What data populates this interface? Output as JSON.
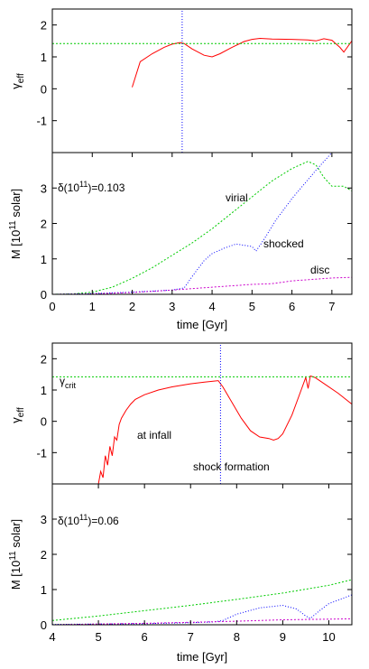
{
  "chart_data": [
    {
      "type": "line",
      "ylabel_main": "γ",
      "ylabel_sub": "eff",
      "ylim": [
        -2,
        2.5
      ],
      "yticks": [
        "2",
        "1",
        "0",
        "-1"
      ],
      "xlim": [
        0,
        7.5
      ],
      "series": [
        {
          "color": "#ff0000",
          "x": [
            2.0,
            2.2,
            2.5,
            2.8,
            3.0,
            3.2,
            3.3,
            3.5,
            3.8,
            4.0,
            4.2,
            4.5,
            4.8,
            5.0,
            5.2,
            5.5,
            6.0,
            6.4,
            6.6,
            6.8,
            7.0,
            7.2,
            7.3,
            7.5
          ],
          "y": [
            0.05,
            0.85,
            1.1,
            1.3,
            1.4,
            1.45,
            1.42,
            1.25,
            1.05,
            1.0,
            1.1,
            1.3,
            1.48,
            1.55,
            1.58,
            1.56,
            1.55,
            1.53,
            1.5,
            1.57,
            1.52,
            1.3,
            1.15,
            1.5
          ]
        },
        {
          "color": "#00cc00",
          "x": [
            0,
            7.5
          ],
          "y": [
            1.42,
            1.42
          ]
        },
        {
          "color": "#0000ff",
          "x": [
            3.25,
            3.25
          ],
          "y": [
            -2,
            2.5
          ]
        }
      ]
    },
    {
      "type": "line",
      "ylabel": "M [10¹¹ solar]",
      "ylabel_main": "M [10",
      "ylabel_sup": "11",
      "ylabel_end": " solar]",
      "xlabel": "time [Gyr]",
      "xlim": [
        0,
        7.5
      ],
      "ylim": [
        0,
        4
      ],
      "xticks": [
        "0",
        "1",
        "2",
        "3",
        "4",
        "5",
        "6",
        "7"
      ],
      "yticks": [
        "3",
        "2",
        "1",
        "0"
      ],
      "label_main": "δ(10",
      "label_sup": "11",
      "label_end": ")=0.103",
      "annotations": {
        "virial": "virial",
        "shocked": "shocked",
        "disc": "disc"
      },
      "series": [
        {
          "color": "#00cc00",
          "x": [
            0,
            0.5,
            1.0,
            1.5,
            2.0,
            2.5,
            3.0,
            3.5,
            4.0,
            4.5,
            5.0,
            5.5,
            6.0,
            6.4,
            6.6,
            6.8,
            7.0,
            7.3,
            7.5
          ],
          "y": [
            0,
            0.01,
            0.06,
            0.2,
            0.45,
            0.75,
            1.1,
            1.45,
            1.85,
            2.3,
            2.75,
            3.2,
            3.55,
            3.75,
            3.65,
            3.3,
            3.05,
            3.05,
            2.92
          ]
        },
        {
          "color": "#0000ff",
          "x": [
            0,
            1.0,
            2.0,
            3.0,
            3.3,
            3.5,
            3.8,
            4.0,
            4.3,
            4.6,
            5.0,
            5.1,
            5.3,
            5.6,
            6.0,
            6.3,
            6.6,
            7.0,
            7.3
          ],
          "y": [
            0,
            0.02,
            0.06,
            0.12,
            0.18,
            0.5,
            0.95,
            1.15,
            1.3,
            1.42,
            1.35,
            1.22,
            1.55,
            2.1,
            2.7,
            3.1,
            3.5,
            4.0,
            4.3
          ]
        },
        {
          "color": "#cc00cc",
          "x": [
            0,
            1.0,
            2.0,
            3.0,
            4.0,
            5.0,
            5.5,
            6.0,
            7.0,
            7.5
          ],
          "y": [
            0,
            0.01,
            0.05,
            0.12,
            0.2,
            0.28,
            0.3,
            0.38,
            0.46,
            0.48
          ]
        }
      ]
    },
    {
      "type": "line",
      "ylabel_main": "γ",
      "ylabel_sub": "eff",
      "xlim": [
        4,
        10.5
      ],
      "ylim": [
        -2,
        2.5
      ],
      "yticks": [
        "2",
        "1",
        "0",
        "-1"
      ],
      "annotations": {
        "gcrit_main": "γ",
        "gcrit_sub": "crit",
        "infall": "at infall",
        "shock": "shock formation"
      },
      "series": [
        {
          "color": "#ff0000",
          "x": [
            5.0,
            5.05,
            5.1,
            5.15,
            5.2,
            5.25,
            5.3,
            5.35,
            5.4,
            5.45,
            5.5,
            5.6,
            5.7,
            5.8,
            6.0,
            6.3,
            6.6,
            7.0,
            7.3,
            7.6,
            7.7,
            7.9,
            8.1,
            8.3,
            8.5,
            8.7,
            8.8,
            8.9,
            9.0,
            9.2,
            9.4,
            9.5,
            9.55,
            9.6,
            9.7,
            9.9,
            10.2,
            10.5
          ],
          "y": [
            -2.0,
            -1.6,
            -1.8,
            -1.1,
            -1.4,
            -0.8,
            -1.1,
            -0.5,
            -0.6,
            -0.1,
            0.1,
            0.35,
            0.55,
            0.7,
            0.85,
            1.0,
            1.1,
            1.2,
            1.25,
            1.3,
            1.1,
            0.6,
            0.1,
            -0.3,
            -0.5,
            -0.55,
            -0.6,
            -0.55,
            -0.4,
            0.2,
            1.0,
            1.4,
            1.05,
            1.45,
            1.4,
            1.2,
            0.9,
            0.55
          ]
        },
        {
          "color": "#00cc00",
          "x": [
            4,
            10.5
          ],
          "y": [
            1.42,
            1.42
          ]
        },
        {
          "color": "#0000ff",
          "x": [
            7.65,
            7.65
          ],
          "y": [
            -2,
            2.5
          ]
        }
      ]
    },
    {
      "type": "line",
      "ylabel_main": "M [10",
      "ylabel_sup": "11",
      "ylabel_end": " solar]",
      "xlabel": "time [Gyr]",
      "xlim": [
        4,
        10.5
      ],
      "ylim": [
        0,
        4
      ],
      "xticks": [
        "4",
        "5",
        "6",
        "7",
        "8",
        "9",
        "10"
      ],
      "yticks": [
        "3",
        "2",
        "1",
        "0"
      ],
      "label_main": "δ(10",
      "label_sup": "11",
      "label_end": ")=0.06",
      "series": [
        {
          "color": "#00cc00",
          "x": [
            4,
            5,
            6,
            7,
            8,
            9,
            10,
            10.5
          ],
          "y": [
            0.12,
            0.25,
            0.4,
            0.55,
            0.72,
            0.9,
            1.12,
            1.28
          ]
        },
        {
          "color": "#0000ff",
          "x": [
            4,
            5,
            6,
            7,
            7.5,
            7.7,
            8.0,
            8.5,
            9.0,
            9.3,
            9.5,
            9.6,
            9.8,
            10.0,
            10.3,
            10.5
          ],
          "y": [
            0.01,
            0.02,
            0.03,
            0.06,
            0.08,
            0.12,
            0.3,
            0.48,
            0.55,
            0.45,
            0.25,
            0.18,
            0.4,
            0.6,
            0.75,
            0.85
          ]
        },
        {
          "color": "#cc00cc",
          "x": [
            4,
            5,
            6,
            7,
            8,
            9,
            10,
            10.5
          ],
          "y": [
            0.0,
            0.02,
            0.04,
            0.07,
            0.1,
            0.14,
            0.16,
            0.17
          ]
        }
      ]
    }
  ]
}
